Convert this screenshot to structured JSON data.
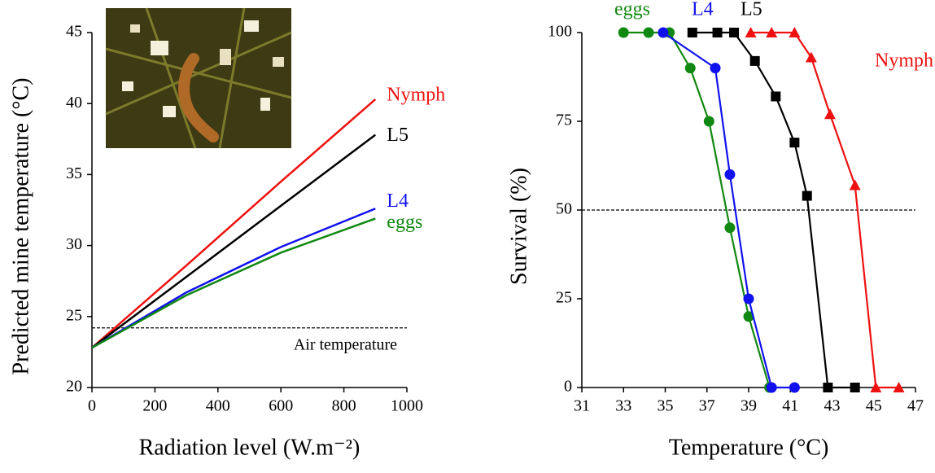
{
  "chart_data": [
    {
      "type": "line",
      "x_label": "Radiation level (W.m⁻²)",
      "y_label": "Predicted mine temperature (°C)",
      "xlim": [
        0,
        1000
      ],
      "xticks": [
        0,
        200,
        400,
        600,
        800,
        1000
      ],
      "ylim": [
        20,
        45
      ],
      "yticks": [
        20,
        25,
        30,
        35,
        40,
        45
      ],
      "series": [
        {
          "name": "Nymph",
          "color": "#ee1111",
          "x": [
            0,
            300,
            600,
            900
          ],
          "values": [
            22.8,
            28.6,
            34.5,
            40.3
          ]
        },
        {
          "name": "L5",
          "color": "#000000",
          "x": [
            0,
            300,
            600,
            900
          ],
          "values": [
            22.8,
            27.8,
            32.8,
            37.8
          ]
        },
        {
          "name": "L4",
          "color": "#1111ee",
          "x": [
            0,
            300,
            600,
            900
          ],
          "values": [
            22.8,
            26.7,
            29.9,
            32.6
          ]
        },
        {
          "name": "eggs",
          "color": "#118811",
          "x": [
            0,
            300,
            600,
            900
          ],
          "values": [
            22.8,
            26.5,
            29.5,
            31.9
          ]
        }
      ],
      "hlines": [
        {
          "value": 24.2,
          "label": "Air temperature"
        }
      ]
    },
    {
      "type": "line",
      "x_label": "Temperature (°C)",
      "y_label": "Survival (%)",
      "xlim": [
        31,
        47
      ],
      "xticks": [
        31,
        33,
        35,
        37,
        39,
        41,
        43,
        45,
        47
      ],
      "ylim": [
        0,
        100
      ],
      "yticks": [
        0,
        25,
        50,
        75,
        100
      ],
      "series": [
        {
          "name": "eggs",
          "color": "#118811",
          "marker": "circle",
          "x": [
            33.0,
            34.2,
            35.2,
            36.2,
            37.1,
            38.1,
            39.0,
            40.0
          ],
          "values": [
            100,
            100,
            100,
            90,
            75,
            45,
            20,
            0
          ]
        },
        {
          "name": "L4",
          "color": "#1111ee",
          "marker": "circle",
          "x": [
            34.9,
            37.4,
            38.1,
            39.0,
            40.1,
            41.2
          ],
          "values": [
            100,
            90,
            60,
            25,
            0,
            0
          ]
        },
        {
          "name": "L5",
          "color": "#000000",
          "marker": "square",
          "x": [
            36.3,
            37.5,
            38.3,
            39.3,
            40.3,
            41.2,
            41.8,
            42.8,
            44.1
          ],
          "values": [
            100,
            100,
            100,
            92,
            82,
            69,
            54,
            0,
            0
          ]
        },
        {
          "name": "Nymph",
          "color": "#ee1111",
          "marker": "triangle",
          "x": [
            39.1,
            40.1,
            41.2,
            42.0,
            42.9,
            44.1,
            45.1,
            46.2
          ],
          "values": [
            100,
            100,
            100,
            93,
            77,
            57,
            0,
            0
          ]
        }
      ],
      "hlines": [
        {
          "value": 50
        }
      ]
    }
  ]
}
